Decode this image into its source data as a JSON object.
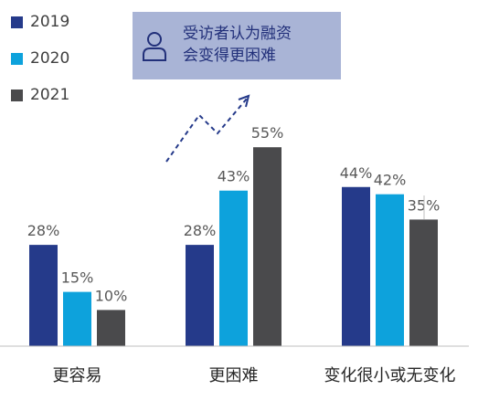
{
  "legend": {
    "items": [
      {
        "label": "2019",
        "color": "#253a8a"
      },
      {
        "label": "2020",
        "color": "#0da2dc"
      },
      {
        "label": "2021",
        "color": "#4a4a4c"
      }
    ]
  },
  "callout": {
    "icon": "person-icon",
    "lines": [
      "受访者认为融资",
      "会变得更困难"
    ]
  },
  "chart_data": {
    "type": "bar",
    "categories": [
      "更容易",
      "更困难",
      "变化很小或无变化"
    ],
    "series": [
      {
        "name": "2019",
        "color": "#253a8a",
        "values": [
          28,
          28,
          44
        ]
      },
      {
        "name": "2020",
        "color": "#0da2dc",
        "values": [
          15,
          43,
          42
        ]
      },
      {
        "name": "2021",
        "color": "#4a4a4c",
        "values": [
          10,
          55,
          35
        ]
      }
    ],
    "value_labels": [
      [
        "28%",
        "15%",
        "10%"
      ],
      [
        "28%",
        "43%",
        "55%"
      ],
      [
        "44%",
        "42%",
        "35%"
      ]
    ],
    "ylim": [
      0,
      60
    ],
    "grid": false,
    "legend_position": "top-left"
  }
}
